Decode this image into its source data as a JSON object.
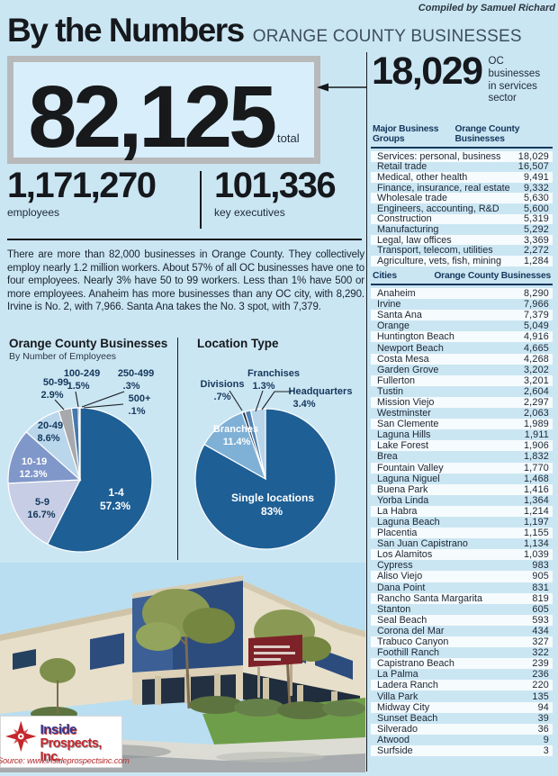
{
  "header": {
    "title": "By the Numbers",
    "subtitle": "ORANGE COUNTY BUSINESSES",
    "credit": "Compiled by Samuel Richard"
  },
  "totals": {
    "total_value": "82,125",
    "total_label": "total",
    "services_value": "18,029",
    "services_label": "OC businesses in services sector",
    "employees_value": "1,171,270",
    "employees_label": "employees",
    "executives_value": "101,336",
    "executives_label": "key executives"
  },
  "intro": "There are more than 82,000 businesses in Orange County. They collectively employ nearly 1.2 million workers. About 57% of all OC businesses have one to four employees. Nearly 3% have 50 to 99 workers. Less than 1% have 500 or more employees. Anaheim has more businesses than any OC city, with 8,290. Irvine is No. 2, with 7,966. Santa Ana takes the No. 3 spot, with 7,379.",
  "business_groups": {
    "header_left": "Major Business Groups",
    "header_right": "Orange County Businesses",
    "rows": [
      [
        "Services: personal, business",
        "18,029"
      ],
      [
        "Retail trade",
        "16,507"
      ],
      [
        "Medical, other health",
        "9,491"
      ],
      [
        "Finance, insurance, real estate",
        "9,332"
      ],
      [
        "Wholesale trade",
        "5,630"
      ],
      [
        "Engineers, accounting, R&D",
        "5,600"
      ],
      [
        "Construction",
        "5,319"
      ],
      [
        "Manufacturing",
        "5,292"
      ],
      [
        "Legal, law offices",
        "3,369"
      ],
      [
        "Transport, telecom, utilities",
        "2,272"
      ],
      [
        "Agriculture, vets, fish, mining",
        "1,284"
      ]
    ]
  },
  "cities": {
    "header_left": "Cities",
    "header_right": "Orange County Businesses",
    "rows": [
      [
        "Anaheim",
        "8,290"
      ],
      [
        "Irvine",
        "7,966"
      ],
      [
        "Santa Ana",
        "7,379"
      ],
      [
        "Orange",
        "5,049"
      ],
      [
        "Huntington Beach",
        "4,916"
      ],
      [
        "Newport Beach",
        "4,665"
      ],
      [
        "Costa Mesa",
        "4,268"
      ],
      [
        "Garden Grove",
        "3,202"
      ],
      [
        "Fullerton",
        "3,201"
      ],
      [
        "Tustin",
        "2,604"
      ],
      [
        "Mission Viejo",
        "2,297"
      ],
      [
        "Westminster",
        "2,063"
      ],
      [
        "San Clemente",
        "1,989"
      ],
      [
        "Laguna Hills",
        "1,911"
      ],
      [
        "Lake Forest",
        "1,906"
      ],
      [
        "Brea",
        "1,832"
      ],
      [
        "Fountain Valley",
        "1,770"
      ],
      [
        "Laguna Niguel",
        "1,468"
      ],
      [
        "Buena Park",
        "1,416"
      ],
      [
        "Yorba Linda",
        "1,364"
      ],
      [
        "La Habra",
        "1,214"
      ],
      [
        "Laguna Beach",
        "1,197"
      ],
      [
        "Placentia",
        "1,155"
      ],
      [
        "San Juan Capistrano",
        "1,134"
      ],
      [
        "Los Alamitos",
        "1,039"
      ],
      [
        "Cypress",
        "983"
      ],
      [
        "Aliso Viejo",
        "905"
      ],
      [
        "Dana Point",
        "831"
      ],
      [
        "Rancho Santa Margarita",
        "819"
      ],
      [
        "Stanton",
        "605"
      ],
      [
        "Seal Beach",
        "593"
      ],
      [
        "Corona del Mar",
        "434"
      ],
      [
        "Trabuco Canyon",
        "327"
      ],
      [
        "Foothill Ranch",
        "322"
      ],
      [
        "Capistrano Beach",
        "239"
      ],
      [
        "La Palma",
        "236"
      ],
      [
        "Ladera Ranch",
        "220"
      ],
      [
        "Villa Park",
        "135"
      ],
      [
        "Midway City",
        "94"
      ],
      [
        "Sunset Beach",
        "39"
      ],
      [
        "Silverado",
        "36"
      ],
      [
        "Atwood",
        "9"
      ],
      [
        "Surfside",
        "3"
      ]
    ]
  },
  "chart_data": [
    {
      "type": "pie",
      "title": "Orange County Businesses",
      "subtitle": "By Number of Employees",
      "legend_position": "labels-on-slices",
      "slices": [
        {
          "label": "1-4",
          "pct": 57.3,
          "pct_label": "57.3%",
          "color": "#1e5f95"
        },
        {
          "label": "5-9",
          "pct": 16.7,
          "pct_label": "16.7%",
          "color": "#c6cde4"
        },
        {
          "label": "10-19",
          "pct": 12.3,
          "pct_label": "12.3%",
          "color": "#8097c9"
        },
        {
          "label": "20-49",
          "pct": 8.6,
          "pct_label": "8.6%",
          "color": "#b9d6eb"
        },
        {
          "label": "50-99",
          "pct": 2.9,
          "pct_label": "2.9%",
          "color": "#a7a9ac"
        },
        {
          "label": "100-249",
          "pct": 1.5,
          "pct_label": "1.5%",
          "color": "#4379ae"
        },
        {
          "label": "250-499",
          "pct": 0.3,
          "pct_label": ".3%",
          "color": "#1b2f4e"
        },
        {
          "label": "500+",
          "pct": 0.1,
          "pct_label": ".1%",
          "color": "#6f9fca"
        }
      ]
    },
    {
      "type": "pie",
      "title": "Location Type",
      "legend_position": "labels-on-slices",
      "slices": [
        {
          "label": "Single locations",
          "pct": 83,
          "pct_label": "83%",
          "color": "#1e5f95"
        },
        {
          "label": "Branches",
          "pct": 11.4,
          "pct_label": "11.4%",
          "color": "#7fb0d6"
        },
        {
          "label": "Divisions",
          "pct": 0.7,
          "pct_label": ".7%",
          "color": "#22354f"
        },
        {
          "label": "Franchises",
          "pct": 1.3,
          "pct_label": "1.3%",
          "color": "#4f84b5"
        },
        {
          "label": "Headquarters",
          "pct": 3.4,
          "pct_label": "3.4%",
          "color": "#b8d5ea"
        }
      ]
    }
  ],
  "photo": {
    "logo_line1": "Inside",
    "logo_line2": "Prospects, Inc.",
    "source": "Source: www.insideprospectsinc.com"
  },
  "colors": {
    "background": "#cbe6f3",
    "navy_text": "#14375c",
    "dark_rule": "#161b20",
    "box_border": "#b7b9ba",
    "logo_blue": "#2c3b97",
    "logo_red": "#c3272b"
  }
}
